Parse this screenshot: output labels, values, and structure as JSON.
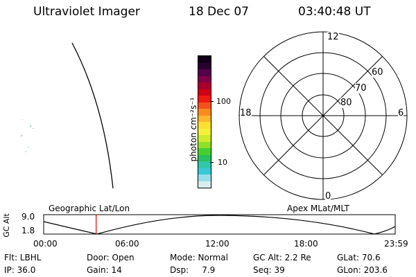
{
  "header": {
    "title": "Ultraviolet Imager",
    "date": "18 Dec 07",
    "time": "03:40:48 UT"
  },
  "colorbar": {
    "label": "photon cm⁻²s⁻¹",
    "tick_100": "100",
    "tick_10": "10",
    "colors": [
      "#120018",
      "#2a0030",
      "#55004a",
      "#80004a",
      "#a8002a",
      "#d00018",
      "#ef1a10",
      "#f5501a",
      "#f88a20",
      "#fdb72e",
      "#fde030",
      "#f5f03a",
      "#cdec2a",
      "#8fe028",
      "#45d030",
      "#28c060",
      "#30c8a8",
      "#38c8d8",
      "#98dde8",
      "#d8eeee"
    ]
  },
  "polar": {
    "top": "12",
    "bottom": "0",
    "left": "18",
    "right": "6",
    "ring_60": "60",
    "ring_70": "70",
    "ring_80": "80"
  },
  "track": {
    "left_title": "Geographic Lat/Lon",
    "right_title": "Apex MLat/MLT",
    "y_axis": "GC Alt",
    "y_top": "9.0",
    "y_bottom": "1.8",
    "x_ticks": [
      "00:00",
      "06:00",
      "12:00",
      "18:00",
      "23:59"
    ]
  },
  "info": {
    "filter": "Flt: LBHL",
    "door": "Door: Open",
    "mode": "Mode: Normal",
    "gc_alt": "GC Alt: 2.2 Re",
    "glat": "GLat:  70.6",
    "ip": "IP: 36.0",
    "gain": "Gain: 14",
    "dsp": "Dsp:     7.9",
    "seq": "Seq: 39",
    "glon": "GLon: 203.6"
  },
  "accent": {
    "marker": "#dd0000"
  }
}
